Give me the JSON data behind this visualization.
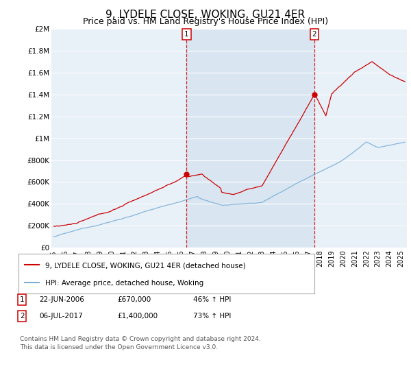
{
  "title": "9, LYDELE CLOSE, WOKING, GU21 4ER",
  "subtitle": "Price paid vs. HM Land Registry's House Price Index (HPI)",
  "title_fontsize": 11,
  "subtitle_fontsize": 9,
  "property_color": "#cc0000",
  "hpi_color": "#7aaed6",
  "shade_color": "#d6e4f0",
  "background_color": "#ffffff",
  "plot_bg_color": "#e8f0f8",
  "grid_color": "#ffffff",
  "ylim": [
    0,
    2000000
  ],
  "yticks": [
    0,
    200000,
    400000,
    600000,
    800000,
    1000000,
    1200000,
    1400000,
    1600000,
    1800000,
    2000000
  ],
  "ytick_labels": [
    "£0",
    "£200K",
    "£400K",
    "£600K",
    "£800K",
    "£1M",
    "£1.2M",
    "£1.4M",
    "£1.6M",
    "£1.8M",
    "£2M"
  ],
  "xlim_start": 1994.8,
  "xlim_end": 2025.5,
  "xtick_years": [
    1995,
    1996,
    1997,
    1998,
    1999,
    2000,
    2001,
    2002,
    2003,
    2004,
    2005,
    2006,
    2007,
    2008,
    2009,
    2010,
    2011,
    2012,
    2013,
    2014,
    2015,
    2016,
    2017,
    2018,
    2019,
    2020,
    2021,
    2022,
    2023,
    2024,
    2025
  ],
  "marker1_x": 2006.47,
  "marker1_y": 670000,
  "marker1_label": "1",
  "marker1_date": "22-JUN-2006",
  "marker1_price": "£670,000",
  "marker1_hpi": "46% ↑ HPI",
  "marker2_x": 2017.51,
  "marker2_y": 1400000,
  "marker2_label": "2",
  "marker2_date": "06-JUL-2017",
  "marker2_price": "£1,400,000",
  "marker2_hpi": "73% ↑ HPI",
  "vline1_x": 2006.47,
  "vline2_x": 2017.51,
  "legend_property": "9, LYDELE CLOSE, WOKING, GU21 4ER (detached house)",
  "legend_hpi": "HPI: Average price, detached house, Woking",
  "footnote": "Contains HM Land Registry data © Crown copyright and database right 2024.\nThis data is licensed under the Open Government Licence v3.0."
}
